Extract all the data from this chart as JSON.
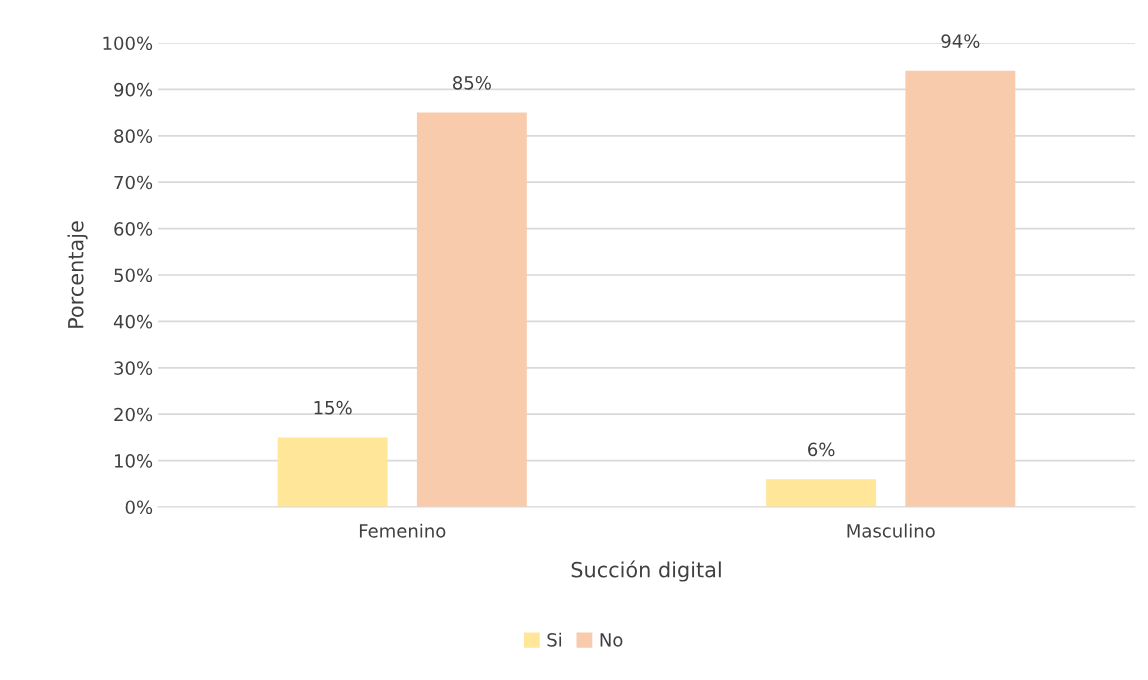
{
  "chart_data": {
    "type": "bar",
    "xlabel": "Succión digital",
    "ylabel": "Porcentaje",
    "categories": [
      "Femenino",
      "Masculino"
    ],
    "series": [
      {
        "name": "Si",
        "color": "#ffe699",
        "values": [
          15,
          6
        ],
        "value_labels": [
          "15%",
          "6%"
        ]
      },
      {
        "name": "No",
        "color": "#f8cbad",
        "values": [
          85,
          94
        ],
        "value_labels": [
          "85%",
          "94%"
        ]
      }
    ],
    "ylim": [
      0,
      100
    ],
    "yticks": [
      {
        "value": 0,
        "label": "0%"
      },
      {
        "value": 10,
        "label": "10%"
      },
      {
        "value": 20,
        "label": "20%"
      },
      {
        "value": 30,
        "label": "30%"
      },
      {
        "value": 40,
        "label": "40%"
      },
      {
        "value": 50,
        "label": "50%"
      },
      {
        "value": 60,
        "label": "60%"
      },
      {
        "value": 70,
        "label": "70%"
      },
      {
        "value": 80,
        "label": "80%"
      },
      {
        "value": 90,
        "label": "90%"
      },
      {
        "value": 100,
        "label": "100%"
      }
    ],
    "grid": "y",
    "legend": "bottom"
  }
}
